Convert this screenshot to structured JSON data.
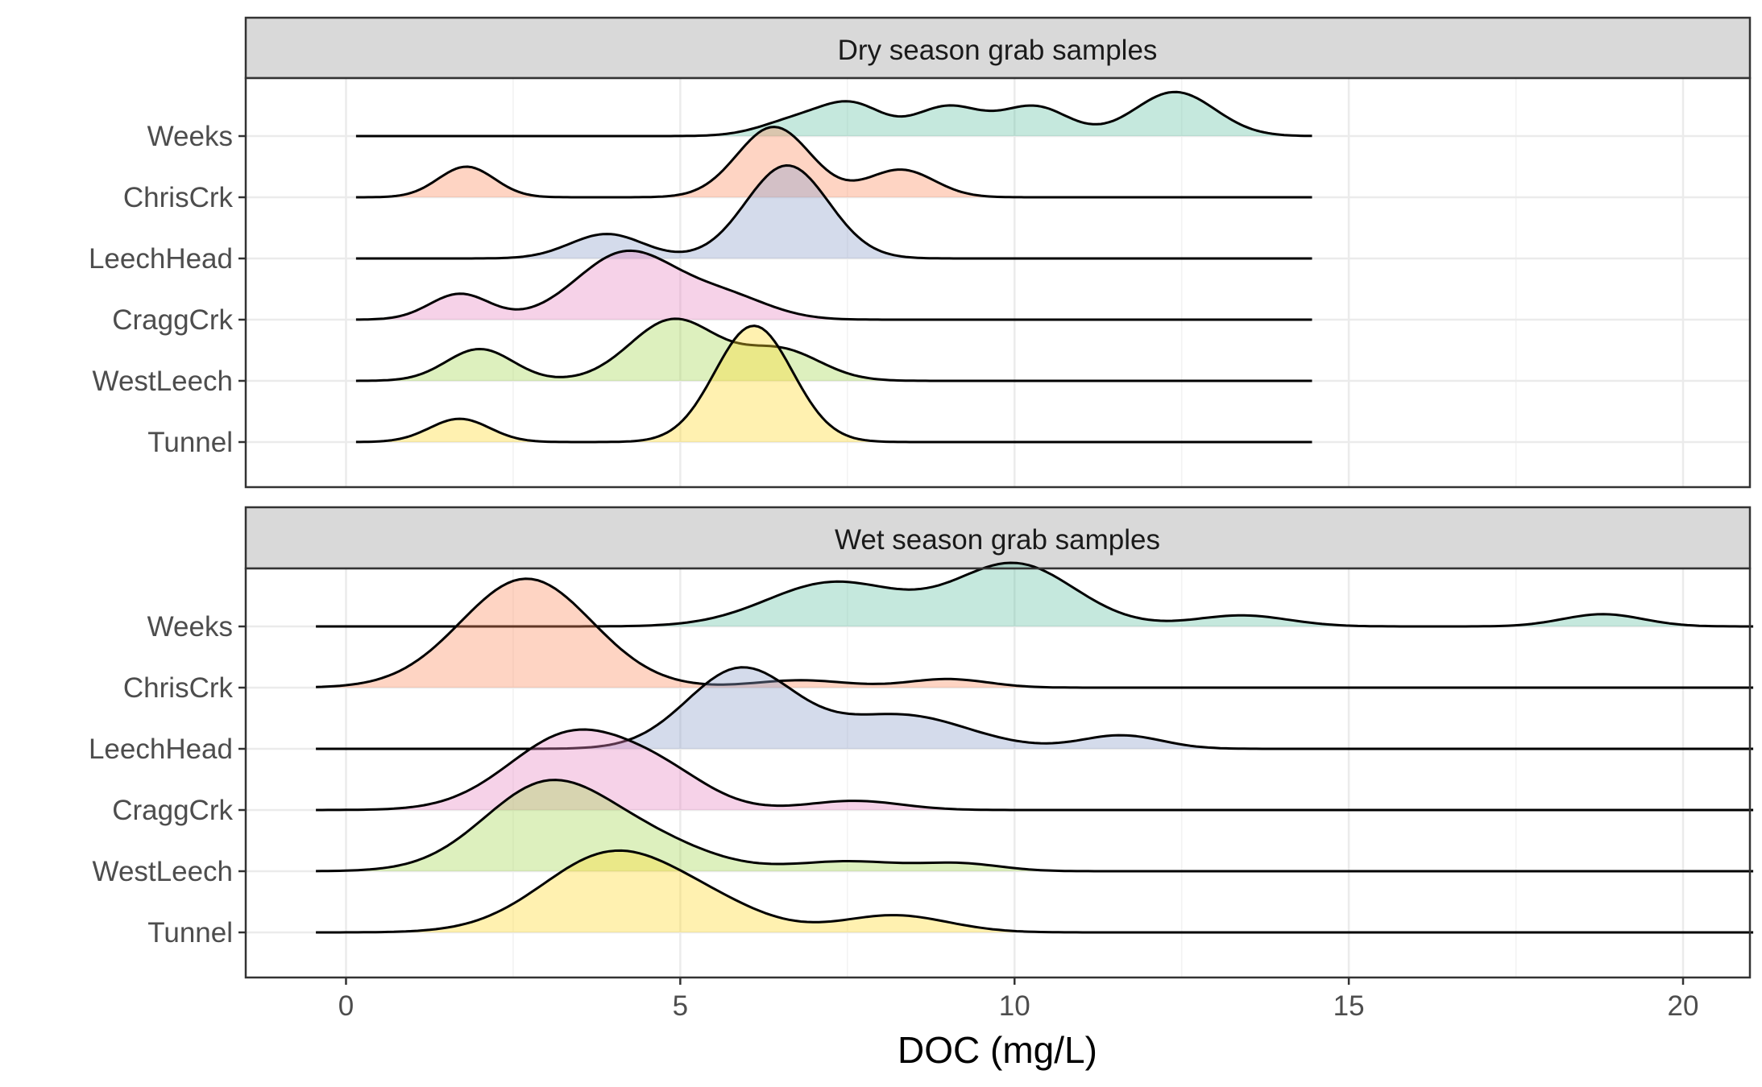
{
  "chart_data": {
    "type": "ridgeline",
    "xlabel": "DOC (mg/L)",
    "ylabel": "",
    "xlim": [
      -1.5,
      21
    ],
    "x_ticks": [
      0,
      5,
      10,
      15,
      20
    ],
    "grid": true,
    "categories": [
      "Weeks",
      "ChrisCrk",
      "LeechHead",
      "CraggCrk",
      "WestLeech",
      "Tunnel"
    ],
    "colors": {
      "Weeks": "#66c2a5",
      "ChrisCrk": "#fc8d62",
      "LeechHead": "#8da0cb",
      "CraggCrk": "#e78ac3",
      "WestLeech": "#a6d854",
      "Tunnel": "#ffd92f"
    },
    "panels": [
      {
        "title": "Dry season grab samples",
        "x_range": [
          0.15,
          14.45
        ],
        "series": [
          {
            "name": "Weeks",
            "peaks": [
              [
                6.8,
                0.28,
                0.55
              ],
              [
                7.6,
                0.45,
                0.45
              ],
              [
                9.0,
                0.48,
                0.5
              ],
              [
                10.3,
                0.48,
                0.5
              ],
              [
                12.4,
                0.72,
                0.6
              ]
            ]
          },
          {
            "name": "ChrisCrk",
            "peaks": [
              [
                1.8,
                0.5,
                0.42
              ],
              [
                6.4,
                1.15,
                0.55
              ],
              [
                8.3,
                0.45,
                0.5
              ]
            ]
          },
          {
            "name": "LeechHead",
            "peaks": [
              [
                3.9,
                0.4,
                0.55
              ],
              [
                6.6,
                1.52,
                0.62
              ]
            ]
          },
          {
            "name": "CraggCrk",
            "peaks": [
              [
                1.7,
                0.42,
                0.45
              ],
              [
                4.2,
                1.1,
                0.75
              ],
              [
                5.7,
                0.35,
                0.65
              ]
            ]
          },
          {
            "name": "WestLeech",
            "peaks": [
              [
                2.0,
                0.52,
                0.5
              ],
              [
                4.9,
                1.0,
                0.65
              ],
              [
                6.5,
                0.5,
                0.6
              ]
            ]
          },
          {
            "name": "Tunnel",
            "peaks": [
              [
                1.7,
                0.38,
                0.45
              ],
              [
                6.1,
                1.9,
                0.58
              ]
            ]
          }
        ]
      },
      {
        "title": "Wet season grab samples",
        "x_range": [
          -0.45,
          21.05
        ],
        "series": [
          {
            "name": "Weeks",
            "peaks": [
              [
                7.3,
                0.72,
                1.0
              ],
              [
                10.0,
                1.02,
                0.9
              ],
              [
                13.4,
                0.18,
                0.7
              ],
              [
                18.8,
                0.2,
                0.6
              ]
            ]
          },
          {
            "name": "ChrisCrk",
            "peaks": [
              [
                2.7,
                1.78,
                0.98
              ],
              [
                6.8,
                0.12,
                0.7
              ],
              [
                9.0,
                0.14,
                0.6
              ]
            ]
          },
          {
            "name": "LeechHead",
            "peaks": [
              [
                5.9,
                1.3,
                0.8
              ],
              [
                8.3,
                0.55,
                1.0
              ],
              [
                11.6,
                0.22,
                0.6
              ]
            ]
          },
          {
            "name": "CraggCrk",
            "peaks": [
              [
                3.4,
                1.25,
                0.95
              ],
              [
                4.8,
                0.4,
                0.7
              ],
              [
                7.6,
                0.15,
                0.7
              ]
            ]
          },
          {
            "name": "WestLeech",
            "peaks": [
              [
                3.0,
                1.4,
                0.95
              ],
              [
                4.6,
                0.4,
                0.9
              ],
              [
                7.5,
                0.16,
                0.8
              ],
              [
                9.2,
                0.12,
                0.6
              ]
            ]
          },
          {
            "name": "Tunnel",
            "peaks": [
              [
                4.0,
                1.3,
                1.05
              ],
              [
                5.6,
                0.25,
                0.8
              ],
              [
                8.2,
                0.28,
                0.8
              ]
            ]
          }
        ]
      }
    ]
  }
}
